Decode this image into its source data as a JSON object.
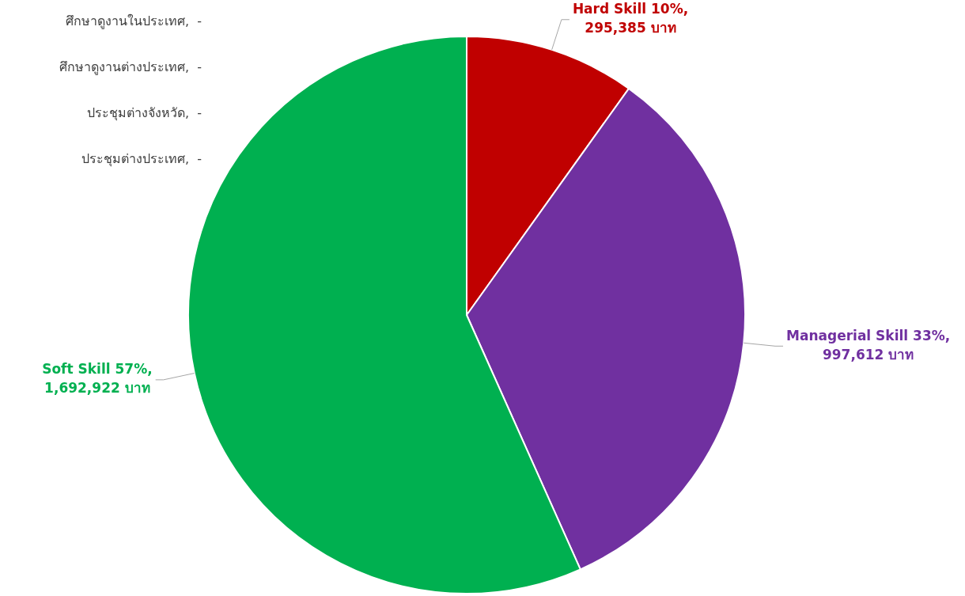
{
  "chart_data": {
    "type": "pie",
    "categories": [
      "Hard Skill",
      "Managerial Skill",
      "Soft Skill",
      "ประชุมต่างประเทศ",
      "ประชุมต่างจังหวัด",
      "ศึกษาดูงานต่างประเทศ",
      "ศึกษาดูงานในประเทศ"
    ],
    "values": [
      295385,
      997612,
      1692922,
      0,
      0,
      0,
      0
    ],
    "colors": [
      "#c00000",
      "#7030a0",
      "#00b050",
      "#4472c4",
      "#ed7d31",
      "#a5a5a5",
      "#ffc000"
    ],
    "value_labels": [
      "10%, 295,385 บาท",
      "33%, 997,612 บาท",
      "57%, 1,692,922 บาท",
      ",  -",
      ",  -",
      ",  -",
      ",  -"
    ],
    "legend": false
  }
}
